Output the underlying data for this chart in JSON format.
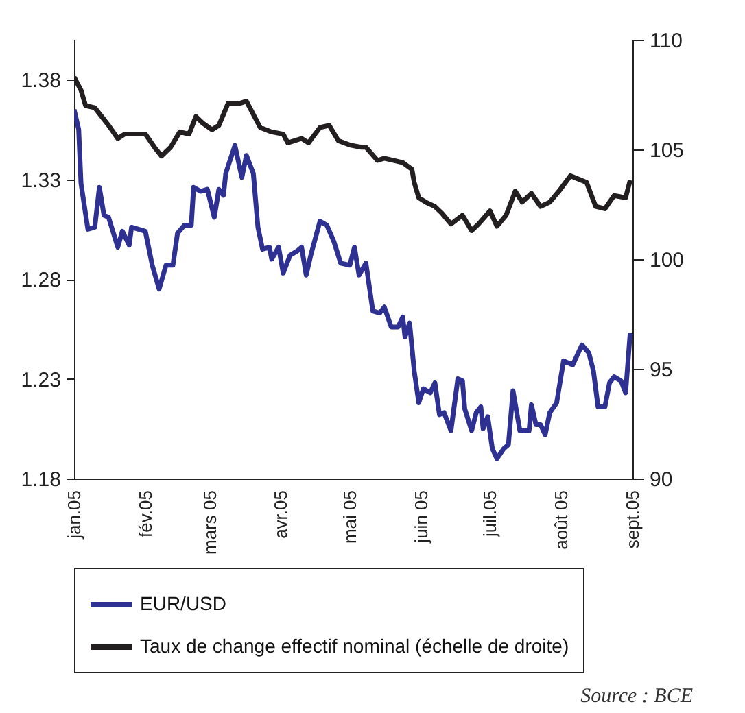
{
  "chart_data": {
    "type": "line",
    "annotations": [
      "Source : BCE"
    ],
    "legend": "bottom",
    "grid": false,
    "xlim": [
      "2005-01-01",
      "2005-09-01"
    ],
    "xticks": [
      {
        "value": "2005-01-01",
        "label": "jan.05"
      },
      {
        "value": "2005-02-01",
        "label": "fév.05"
      },
      {
        "value": "2005-03-01",
        "label": "mars 05"
      },
      {
        "value": "2005-04-01",
        "label": "avr.05"
      },
      {
        "value": "2005-05-01",
        "label": "mai 05"
      },
      {
        "value": "2005-06-01",
        "label": "juin 05"
      },
      {
        "value": "2005-07-01",
        "label": "juil.05"
      },
      {
        "value": "2005-08-01",
        "label": "août 05"
      },
      {
        "value": "2005-09-01",
        "label": "sept.05"
      }
    ],
    "ylim": [
      1.18,
      1.4
    ],
    "yticks": [
      1.18,
      1.23,
      1.28,
      1.33,
      1.38
    ],
    "y2lim": [
      90,
      110
    ],
    "y2ticks": [
      90,
      95,
      100,
      105,
      110
    ],
    "series": [
      {
        "name": "EUR/USD",
        "color": "#2e3192",
        "x": [
          "2005-01-01",
          "2005-01-03",
          "2005-01-04",
          "2005-01-07",
          "2005-01-10",
          "2005-01-12",
          "2005-01-14",
          "2005-01-16",
          "2005-01-20",
          "2005-01-22",
          "2005-01-25",
          "2005-01-26",
          "2005-02-01",
          "2005-02-04",
          "2005-02-07",
          "2005-02-10",
          "2005-02-13",
          "2005-02-15",
          "2005-02-18",
          "2005-02-21",
          "2005-02-22",
          "2005-02-25",
          "2005-02-28",
          "2005-03-03",
          "2005-03-05",
          "2005-03-07",
          "2005-03-08",
          "2005-03-12",
          "2005-03-15",
          "2005-03-17",
          "2005-03-20",
          "2005-03-22",
          "2005-03-24",
          "2005-03-27",
          "2005-03-28",
          "2005-03-31",
          "2005-04-02",
          "2005-04-05",
          "2005-04-08",
          "2005-04-10",
          "2005-04-12",
          "2005-04-14",
          "2005-04-18",
          "2005-04-21",
          "2005-04-24",
          "2005-04-27",
          "2005-05-01",
          "2005-05-03",
          "2005-05-05",
          "2005-05-08",
          "2005-05-11",
          "2005-05-14",
          "2005-05-16",
          "2005-05-19",
          "2005-05-22",
          "2005-05-24",
          "2005-05-25",
          "2005-05-27",
          "2005-05-29",
          "2005-05-31",
          "2005-06-02",
          "2005-06-05",
          "2005-06-07",
          "2005-06-09",
          "2005-06-11",
          "2005-06-14",
          "2005-06-17",
          "2005-06-19",
          "2005-06-20",
          "2005-06-23",
          "2005-06-25",
          "2005-06-27",
          "2005-06-28",
          "2005-06-30",
          "2005-07-02",
          "2005-07-04",
          "2005-07-07",
          "2005-07-09",
          "2005-07-11",
          "2005-07-14",
          "2005-07-18",
          "2005-07-19",
          "2005-07-21",
          "2005-07-23",
          "2005-07-25",
          "2005-07-27",
          "2005-07-30",
          "2005-08-02",
          "2005-08-06",
          "2005-08-10",
          "2005-08-13",
          "2005-08-15",
          "2005-08-17",
          "2005-08-20",
          "2005-08-22",
          "2005-08-24",
          "2005-08-27",
          "2005-08-29",
          "2005-08-31"
        ],
        "values": [
          1.365,
          1.355,
          1.328,
          1.305,
          1.306,
          1.326,
          1.312,
          1.311,
          1.296,
          1.304,
          1.297,
          1.306,
          1.304,
          1.287,
          1.275,
          1.287,
          1.287,
          1.303,
          1.307,
          1.307,
          1.326,
          1.324,
          1.325,
          1.311,
          1.325,
          1.322,
          1.333,
          1.347,
          1.331,
          1.342,
          1.333,
          1.306,
          1.295,
          1.296,
          1.29,
          1.296,
          1.283,
          1.292,
          1.294,
          1.296,
          1.282,
          1.292,
          1.309,
          1.307,
          1.299,
          1.288,
          1.287,
          1.296,
          1.282,
          1.288,
          1.264,
          1.263,
          1.266,
          1.256,
          1.256,
          1.261,
          1.251,
          1.258,
          1.234,
          1.218,
          1.225,
          1.223,
          1.228,
          1.212,
          1.213,
          1.204,
          1.23,
          1.229,
          1.215,
          1.204,
          1.213,
          1.216,
          1.205,
          1.211,
          1.195,
          1.19,
          1.195,
          1.197,
          1.224,
          1.204,
          1.204,
          1.217,
          1.207,
          1.207,
          1.202,
          1.213,
          1.218,
          1.239,
          1.237,
          1.247,
          1.243,
          1.234,
          1.216,
          1.216,
          1.228,
          1.231,
          1.229,
          1.223,
          1.253
        ]
      },
      {
        "name": "Taux de change effectif nominal (échelle de droite)",
        "color": "#231f20",
        "axis": "y2",
        "x": [
          "2005-01-01",
          "2005-01-04",
          "2005-01-06",
          "2005-01-10",
          "2005-01-13",
          "2005-01-16",
          "2005-01-20",
          "2005-01-23",
          "2005-02-01",
          "2005-02-05",
          "2005-02-08",
          "2005-02-12",
          "2005-02-16",
          "2005-02-20",
          "2005-02-23",
          "2005-02-26",
          "2005-03-02",
          "2005-03-05",
          "2005-03-09",
          "2005-03-14",
          "2005-03-17",
          "2005-03-20",
          "2005-03-23",
          "2005-03-28",
          "2005-04-02",
          "2005-04-04",
          "2005-04-10",
          "2005-04-13",
          "2005-04-18",
          "2005-04-22",
          "2005-04-26",
          "2005-05-01",
          "2005-05-06",
          "2005-05-08",
          "2005-05-13",
          "2005-05-16",
          "2005-05-24",
          "2005-05-28",
          "2005-05-29",
          "2005-05-31",
          "2005-06-03",
          "2005-06-07",
          "2005-06-10",
          "2005-06-14",
          "2005-06-19",
          "2005-06-23",
          "2005-06-26",
          "2005-07-01",
          "2005-07-04",
          "2005-07-08",
          "2005-07-12",
          "2005-07-15",
          "2005-07-19",
          "2005-07-23",
          "2005-07-27",
          "2005-07-31",
          "2005-08-05",
          "2005-08-12",
          "2005-08-16",
          "2005-08-20",
          "2005-08-24",
          "2005-08-29",
          "2005-08-31"
        ],
        "values": [
          108.3,
          107.7,
          107.0,
          106.9,
          106.5,
          106.1,
          105.5,
          105.7,
          105.7,
          105.1,
          104.7,
          105.1,
          105.8,
          105.7,
          106.5,
          106.2,
          105.9,
          106.1,
          107.1,
          107.1,
          107.2,
          106.6,
          106.0,
          105.8,
          105.7,
          105.3,
          105.5,
          105.3,
          106.0,
          106.1,
          105.4,
          105.2,
          105.1,
          105.1,
          104.5,
          104.6,
          104.4,
          104.1,
          103.5,
          102.8,
          102.6,
          102.4,
          102.1,
          101.6,
          102.0,
          101.3,
          101.6,
          102.2,
          101.5,
          102.0,
          103.1,
          102.6,
          103.0,
          102.4,
          102.6,
          103.1,
          103.8,
          103.5,
          102.4,
          102.3,
          102.9,
          102.8,
          103.6
        ]
      }
    ]
  }
}
